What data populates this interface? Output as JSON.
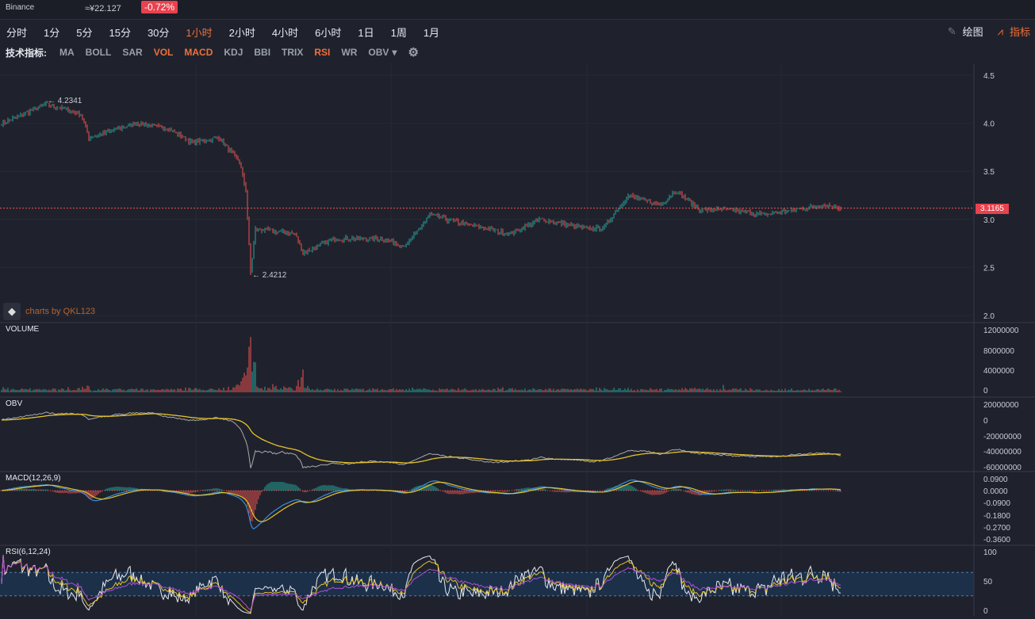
{
  "header": {
    "exchange": "Binance",
    "cny_price": "≈¥22.127",
    "change": "-0.72%"
  },
  "periods": [
    "分时",
    "1分",
    "5分",
    "15分",
    "30分",
    "1小时",
    "2小时",
    "4小时",
    "6小时",
    "1日",
    "1周",
    "1月"
  ],
  "active_period": "1小时",
  "tools": {
    "draw": "绘图",
    "indicators": "指标"
  },
  "indicator_bar": {
    "label": "技术指标:",
    "items": [
      "MA",
      "BOLL",
      "SAR",
      "VOL",
      "MACD",
      "KDJ",
      "BBI",
      "TRIX",
      "RSI",
      "WR",
      "OBV"
    ],
    "active": [
      "VOL",
      "MACD",
      "RSI"
    ],
    "more": "▾"
  },
  "watermark": "charts by QKL123",
  "colors": {
    "up": "#26a69a",
    "down": "#ef5350",
    "accent": "#f0703a",
    "bg": "#1f222d"
  },
  "chart_data": {
    "type": "candlestick",
    "price_axis": {
      "ticks": [
        "4.5",
        "4.0",
        "3.5",
        "3.0",
        "2.5",
        "2.0"
      ],
      "range": [
        2.0,
        4.5
      ]
    },
    "current_price": "3.1165",
    "high_label": "← 4.2341",
    "low_label": "← 2.4212",
    "anchors": [
      [
        0,
        4.0
      ],
      [
        28,
        4.2
      ],
      [
        50,
        4.1
      ],
      [
        55,
        3.85
      ],
      [
        85,
        4.0
      ],
      [
        105,
        3.95
      ],
      [
        120,
        3.8
      ],
      [
        137,
        3.85
      ],
      [
        150,
        3.6
      ],
      [
        154,
        3.3
      ],
      [
        157,
        2.45
      ],
      [
        160,
        2.9
      ],
      [
        185,
        2.85
      ],
      [
        190,
        2.65
      ],
      [
        210,
        2.8
      ],
      [
        240,
        2.8
      ],
      [
        255,
        2.72
      ],
      [
        270,
        3.05
      ],
      [
        280,
        3.0
      ],
      [
        320,
        2.85
      ],
      [
        340,
        3.0
      ],
      [
        370,
        2.9
      ],
      [
        380,
        2.92
      ],
      [
        395,
        3.25
      ],
      [
        415,
        3.15
      ],
      [
        425,
        3.3
      ],
      [
        440,
        3.1
      ],
      [
        460,
        3.1
      ],
      [
        480,
        3.05
      ],
      [
        520,
        3.15
      ],
      [
        529,
        3.12
      ]
    ],
    "panes": [
      {
        "title": "VOLUME",
        "ticks": [
          "12000000",
          "8000000",
          "4000000",
          "0"
        ]
      },
      {
        "title": "OBV",
        "ticks": [
          "20000000",
          "0",
          "-20000000",
          "-40000000",
          "-60000000"
        ]
      },
      {
        "title": "MACD(12,26,9)",
        "ticks": [
          "0.0900",
          "0.0000",
          "-0.0900",
          "-0.1800",
          "-0.2700",
          "-0.3600"
        ]
      },
      {
        "title": "RSI(6,12,24)",
        "ticks": [
          "100",
          "50",
          "0"
        ]
      }
    ]
  }
}
